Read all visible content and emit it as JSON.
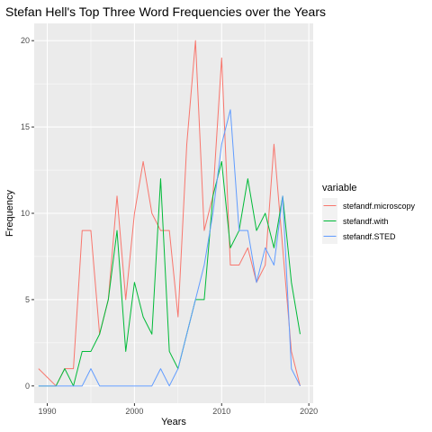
{
  "chart_data": {
    "type": "line",
    "title": "Stefan Hell's Top Three Word Frequencies over the Years",
    "xlabel": "Years",
    "ylabel": "Frequency",
    "xlim": [
      1988.5,
      2020.5
    ],
    "ylim": [
      -1,
      21
    ],
    "x_ticks": [
      1990,
      2000,
      2010,
      2020
    ],
    "y_ticks": [
      0,
      5,
      10,
      15,
      20
    ],
    "grid": true,
    "legend": {
      "title": "variable",
      "position": "right"
    },
    "series": [
      {
        "name": "stefandf.microscopy",
        "color": "#F8766D",
        "x": [
          1989,
          1990,
          1991,
          1992,
          1993,
          1994,
          1995,
          1996,
          1997,
          1998,
          1999,
          2000,
          2001,
          2002,
          2003,
          2004,
          2005,
          2006,
          2007,
          2008,
          2009,
          2010,
          2011,
          2012,
          2013,
          2014,
          2015,
          2016,
          2017,
          2018,
          2019
        ],
        "values": [
          1,
          0.5,
          0,
          1,
          1,
          9,
          9,
          3,
          5,
          11,
          5,
          10,
          13,
          10,
          9,
          9,
          4,
          14,
          20,
          9,
          11,
          19,
          7,
          7,
          8,
          6,
          7,
          14,
          8,
          2,
          0
        ]
      },
      {
        "name": "stefandf.with",
        "color": "#00BA38",
        "x": [
          1989,
          1990,
          1991,
          1992,
          1993,
          1994,
          1995,
          1996,
          1997,
          1998,
          1999,
          2000,
          2001,
          2002,
          2003,
          2004,
          2005,
          2006,
          2007,
          2008,
          2009,
          2010,
          2011,
          2012,
          2013,
          2014,
          2015,
          2016,
          2017,
          2018,
          2019
        ],
        "values": [
          0,
          0,
          0,
          1,
          0,
          2,
          2,
          3,
          5,
          9,
          2,
          6,
          4,
          3,
          12,
          2,
          1,
          3,
          5,
          5,
          11,
          13,
          8,
          9,
          12,
          9,
          10,
          8,
          11,
          6,
          3
        ]
      },
      {
        "name": "stefandf.STED",
        "color": "#619CFF",
        "x": [
          1989,
          1990,
          1991,
          1992,
          1993,
          1994,
          1995,
          1996,
          1997,
          1998,
          1999,
          2000,
          2001,
          2002,
          2003,
          2004,
          2005,
          2006,
          2007,
          2008,
          2009,
          2010,
          2011,
          2012,
          2013,
          2014,
          2015,
          2016,
          2017,
          2018,
          2019
        ],
        "values": [
          0,
          0,
          0,
          0,
          0,
          0,
          1,
          0,
          0,
          0,
          0,
          0,
          0,
          0,
          1,
          0,
          1,
          3,
          5,
          7,
          10,
          14,
          16,
          9,
          9,
          6,
          8,
          7,
          11,
          1,
          0
        ]
      }
    ]
  }
}
